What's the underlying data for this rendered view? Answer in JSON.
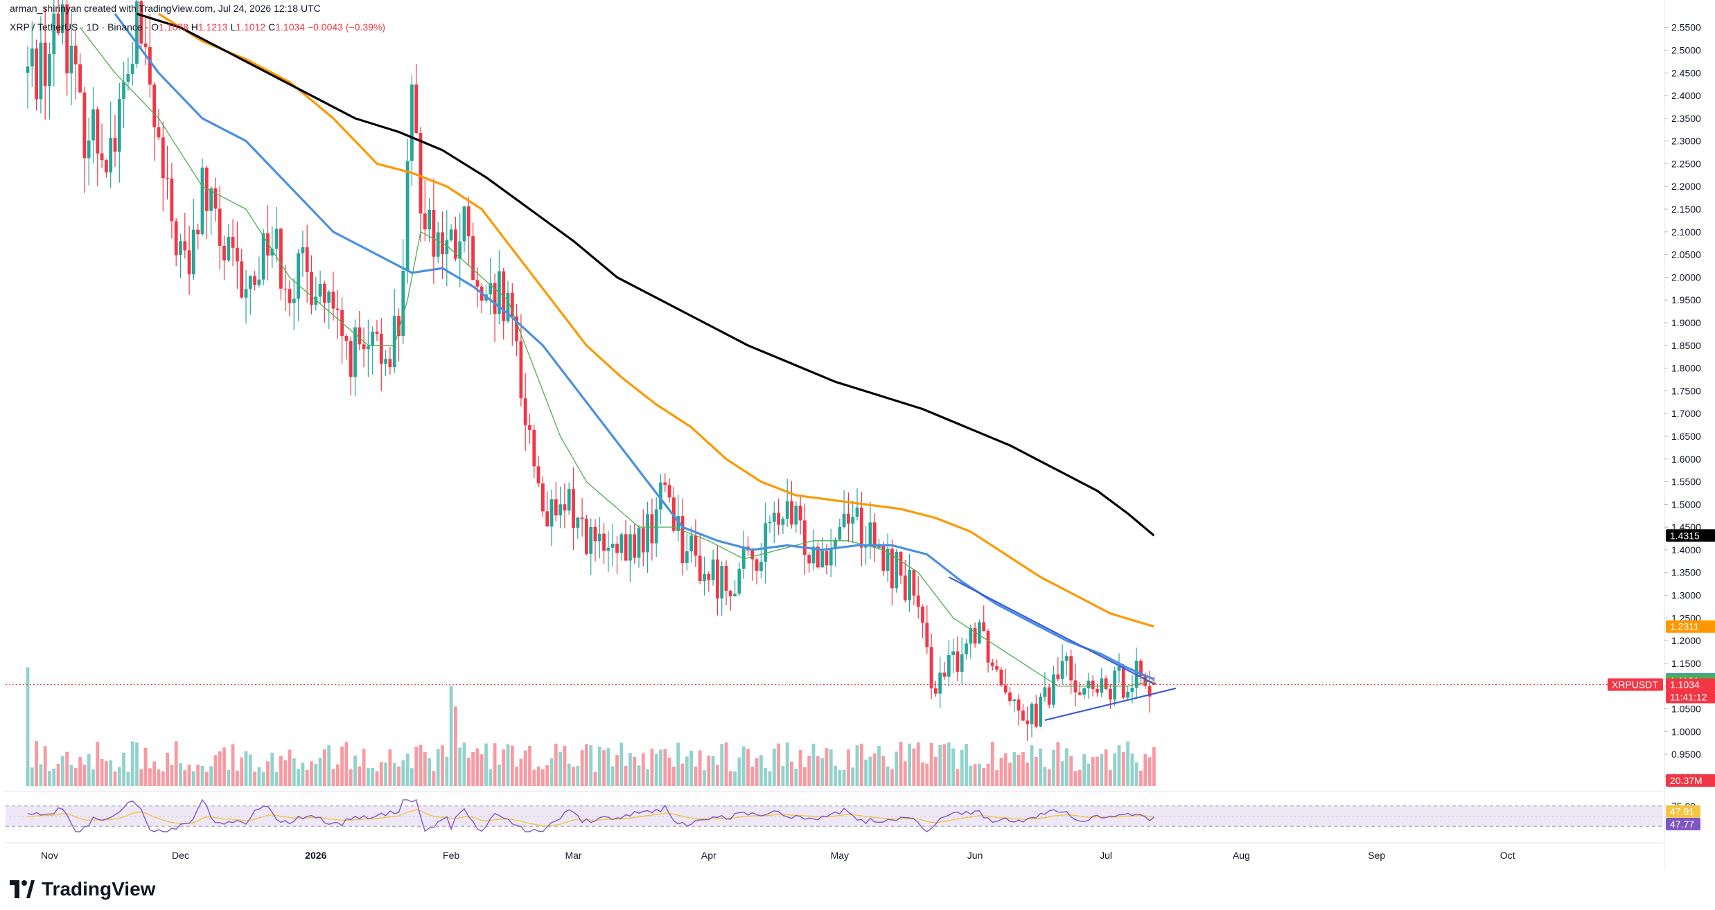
{
  "header": {
    "credit": "arman_shirinyan created with TradingView.com, Jul 24, 2026 12:18 UTC",
    "symbol": "XRP / TetherUS · 1D · Binance",
    "ohlc": {
      "o_label": "O",
      "o": "1.1078",
      "h_label": "H",
      "h": "1.1213",
      "l_label": "L",
      "l": "1.1012",
      "c_label": "C",
      "c": "1.1034",
      "change": "−0.0043 (−0.39%)"
    }
  },
  "brand": {
    "name": "TradingView"
  },
  "colors": {
    "up": "#26a69a",
    "down": "#f23645",
    "ma20": "#4caf50",
    "ma50": "#4a90e2",
    "ma100": "#ff9800",
    "ma200": "#000000",
    "trendline": "#3b5bdb",
    "rsi_line": "#7e57c2",
    "rsi_ma": "#f5c542",
    "rsi_band": "#ede7f6"
  },
  "price_axis": {
    "ticks": [
      "2.5500",
      "2.5000",
      "2.4500",
      "2.4000",
      "2.3500",
      "2.3000",
      "2.2500",
      "2.2000",
      "2.1500",
      "2.1000",
      "2.0500",
      "2.0000",
      "1.9500",
      "1.9000",
      "1.8500",
      "1.8000",
      "1.7500",
      "1.7000",
      "1.6500",
      "1.6000",
      "1.5500",
      "1.5000",
      "1.4500",
      "1.4000",
      "1.3500",
      "1.3000",
      "1.2500",
      "1.2000",
      "1.1500",
      "1.1000",
      "1.0500",
      "1.0000",
      "0.9500",
      "0.9000"
    ],
    "tags": [
      {
        "text": "1.4315",
        "color": "#000000",
        "value": 1.4315
      },
      {
        "text": "1.2311",
        "color": "#ff9800",
        "value": 1.2311
      },
      {
        "text": "1.1150",
        "color": "#4a90e2",
        "value": 1.115
      },
      {
        "text": "1.1121",
        "color": "#4caf50",
        "value": 1.1121
      },
      {
        "text": "XRPUSDT",
        "color": "#f23645",
        "value": 1.1034,
        "side": "left"
      },
      {
        "text": "1.1034",
        "color": "#f23645",
        "value": 1.1034
      },
      {
        "text": "11:41:12",
        "color": "#f23645",
        "value": 1.1034,
        "row": 2
      },
      {
        "text": "20.37M",
        "color": "#f23645",
        "volume": true
      }
    ]
  },
  "rsi_axis": {
    "ticks": [
      "75.00",
      "25.00"
    ],
    "tags": [
      {
        "text": "47.91",
        "color": "#f5c542",
        "value": 47.91,
        "textColor": "#131722"
      },
      {
        "text": "47.77",
        "color": "#7e57c2",
        "value": 47.77
      }
    ]
  },
  "time_axis": {
    "labels": [
      {
        "text": "Nov",
        "day": 5
      },
      {
        "text": "Dec",
        "day": 35
      },
      {
        "text": "2026",
        "day": 66,
        "bold": true
      },
      {
        "text": "Feb",
        "day": 97
      },
      {
        "text": "Mar",
        "day": 125
      },
      {
        "text": "Apr",
        "day": 156
      },
      {
        "text": "May",
        "day": 186
      },
      {
        "text": "Jun",
        "day": 217
      },
      {
        "text": "Jul",
        "day": 247
      },
      {
        "text": "Aug",
        "day": 278
      },
      {
        "text": "Sep",
        "day": 309
      },
      {
        "text": "Oct",
        "day": 339
      }
    ]
  },
  "chart_data": {
    "type": "candlestick",
    "symbol": "XRP / TetherUS",
    "interval": "1D",
    "exchange": "Binance",
    "price_range": [
      0.88,
      2.58
    ],
    "x_axis": "days since Oct 1, 2025",
    "price_path": [
      [
        0,
        2.45
      ],
      [
        5,
        2.5
      ],
      [
        8,
        2.6
      ],
      [
        12,
        2.35
      ],
      [
        17,
        2.3
      ],
      [
        20,
        2.3
      ],
      [
        25,
        2.55
      ],
      [
        28,
        2.4
      ],
      [
        32,
        2.15
      ],
      [
        37,
        2.0
      ],
      [
        40,
        2.2
      ],
      [
        45,
        2.05
      ],
      [
        50,
        1.95
      ],
      [
        55,
        2.1
      ],
      [
        60,
        2.0
      ],
      [
        66,
        2.0
      ],
      [
        72,
        1.85
      ],
      [
        78,
        1.82
      ],
      [
        82,
        1.84
      ],
      [
        85,
        1.9
      ],
      [
        88,
        2.35
      ],
      [
        90,
        2.2
      ],
      [
        93,
        2.1
      ],
      [
        97,
        2.05
      ],
      [
        100,
        2.1
      ],
      [
        104,
        1.9
      ],
      [
        108,
        1.95
      ],
      [
        112,
        1.85
      ],
      [
        114,
        1.7
      ],
      [
        116,
        1.6
      ],
      [
        118,
        1.5
      ],
      [
        121,
        1.45
      ],
      [
        124,
        1.5
      ],
      [
        127,
        1.45
      ],
      [
        131,
        1.4
      ],
      [
        135,
        1.38
      ],
      [
        138,
        1.4
      ],
      [
        143,
        1.45
      ],
      [
        146,
        1.55
      ],
      [
        150,
        1.42
      ],
      [
        155,
        1.35
      ],
      [
        160,
        1.33
      ],
      [
        164,
        1.36
      ],
      [
        168,
        1.4
      ],
      [
        172,
        1.48
      ],
      [
        176,
        1.45
      ],
      [
        180,
        1.4
      ],
      [
        184,
        1.42
      ],
      [
        188,
        1.5
      ],
      [
        191,
        1.45
      ],
      [
        195,
        1.38
      ],
      [
        200,
        1.35
      ],
      [
        203,
        1.3
      ],
      [
        206,
        1.15
      ],
      [
        209,
        1.1
      ],
      [
        212,
        1.15
      ],
      [
        215,
        1.2
      ],
      [
        218,
        1.25
      ],
      [
        221,
        1.15
      ],
      [
        225,
        1.1
      ],
      [
        228,
        1.05
      ],
      [
        231,
        1.04
      ],
      [
        234,
        1.08
      ],
      [
        237,
        1.15
      ],
      [
        240,
        1.12
      ],
      [
        243,
        1.09
      ],
      [
        246,
        1.08
      ],
      [
        249,
        1.1
      ],
      [
        252,
        1.12
      ],
      [
        254,
        1.14
      ],
      [
        256,
        1.11
      ],
      [
        258,
        1.1034
      ]
    ],
    "candle_stats": {
      "count": 259,
      "last_close": 1.1034,
      "last_open": 1.1078,
      "last_high": 1.1213,
      "last_low": 1.1012
    },
    "moving_averages": [
      {
        "period": 20,
        "color": "#4caf50",
        "last": 1.1121,
        "path": [
          [
            12,
            2.55
          ],
          [
            20,
            2.45
          ],
          [
            30,
            2.35
          ],
          [
            40,
            2.2
          ],
          [
            50,
            2.15
          ],
          [
            60,
            2.0
          ],
          [
            66,
            1.95
          ],
          [
            72,
            1.9
          ],
          [
            78,
            1.85
          ],
          [
            84,
            1.85
          ],
          [
            87,
            1.95
          ],
          [
            90,
            2.1
          ],
          [
            96,
            2.07
          ],
          [
            104,
            2.0
          ],
          [
            110,
            1.95
          ],
          [
            116,
            1.8
          ],
          [
            122,
            1.65
          ],
          [
            128,
            1.55
          ],
          [
            134,
            1.5
          ],
          [
            140,
            1.45
          ],
          [
            148,
            1.45
          ],
          [
            156,
            1.42
          ],
          [
            164,
            1.38
          ],
          [
            172,
            1.4
          ],
          [
            180,
            1.42
          ],
          [
            188,
            1.42
          ],
          [
            196,
            1.4
          ],
          [
            204,
            1.35
          ],
          [
            212,
            1.25
          ],
          [
            220,
            1.2
          ],
          [
            228,
            1.15
          ],
          [
            236,
            1.1
          ],
          [
            244,
            1.1
          ],
          [
            252,
            1.1
          ],
          [
            258,
            1.1121
          ]
        ]
      },
      {
        "period": 50,
        "color": "#4a90e2",
        "last": 1.115,
        "path": [
          [
            20,
            2.58
          ],
          [
            30,
            2.45
          ],
          [
            40,
            2.35
          ],
          [
            50,
            2.3
          ],
          [
            60,
            2.2
          ],
          [
            70,
            2.1
          ],
          [
            80,
            2.05
          ],
          [
            88,
            2.01
          ],
          [
            95,
            2.02
          ],
          [
            102,
            1.98
          ],
          [
            110,
            1.92
          ],
          [
            118,
            1.85
          ],
          [
            126,
            1.75
          ],
          [
            134,
            1.65
          ],
          [
            142,
            1.55
          ],
          [
            150,
            1.45
          ],
          [
            158,
            1.42
          ],
          [
            166,
            1.4
          ],
          [
            174,
            1.41
          ],
          [
            182,
            1.4
          ],
          [
            190,
            1.41
          ],
          [
            198,
            1.41
          ],
          [
            206,
            1.39
          ],
          [
            214,
            1.33
          ],
          [
            222,
            1.28
          ],
          [
            230,
            1.24
          ],
          [
            238,
            1.2
          ],
          [
            246,
            1.17
          ],
          [
            252,
            1.14
          ],
          [
            258,
            1.115
          ]
        ]
      },
      {
        "period": 100,
        "color": "#ff9800",
        "last": 1.2311,
        "path": [
          [
            30,
            2.58
          ],
          [
            40,
            2.52
          ],
          [
            50,
            2.48
          ],
          [
            60,
            2.43
          ],
          [
            70,
            2.35
          ],
          [
            80,
            2.25
          ],
          [
            88,
            2.23
          ],
          [
            96,
            2.2
          ],
          [
            104,
            2.15
          ],
          [
            112,
            2.05
          ],
          [
            120,
            1.95
          ],
          [
            128,
            1.85
          ],
          [
            136,
            1.78
          ],
          [
            144,
            1.72
          ],
          [
            152,
            1.67
          ],
          [
            160,
            1.6
          ],
          [
            168,
            1.55
          ],
          [
            176,
            1.52
          ],
          [
            184,
            1.51
          ],
          [
            192,
            1.5
          ],
          [
            200,
            1.49
          ],
          [
            208,
            1.47
          ],
          [
            216,
            1.44
          ],
          [
            224,
            1.39
          ],
          [
            232,
            1.34
          ],
          [
            240,
            1.3
          ],
          [
            248,
            1.26
          ],
          [
            258,
            1.2311
          ]
        ]
      },
      {
        "period": 200,
        "color": "#000000",
        "last": 1.4315,
        "path": [
          [
            25,
            2.58
          ],
          [
            35,
            2.55
          ],
          [
            45,
            2.5
          ],
          [
            55,
            2.45
          ],
          [
            65,
            2.4
          ],
          [
            75,
            2.35
          ],
          [
            85,
            2.32
          ],
          [
            95,
            2.28
          ],
          [
            105,
            2.22
          ],
          [
            115,
            2.15
          ],
          [
            125,
            2.08
          ],
          [
            135,
            2.0
          ],
          [
            145,
            1.95
          ],
          [
            155,
            1.9
          ],
          [
            165,
            1.85
          ],
          [
            175,
            1.81
          ],
          [
            185,
            1.77
          ],
          [
            195,
            1.74
          ],
          [
            205,
            1.71
          ],
          [
            215,
            1.67
          ],
          [
            225,
            1.63
          ],
          [
            235,
            1.58
          ],
          [
            245,
            1.53
          ],
          [
            252,
            1.48
          ],
          [
            258,
            1.4315
          ]
        ]
      }
    ],
    "trendlines": [
      {
        "from": [
          211,
          1.34
        ],
        "to": [
          258,
          1.105
        ]
      },
      {
        "from": [
          233,
          1.025
        ],
        "to": [
          263,
          1.095
        ]
      }
    ],
    "current_price": 1.1034,
    "countdown": "11:41:12",
    "volume": {
      "last": "20.37M",
      "max_ratio": 1.0
    },
    "rsi": {
      "last": 47.77,
      "ma_last": 47.91,
      "upper": 75,
      "lower": 25
    }
  }
}
